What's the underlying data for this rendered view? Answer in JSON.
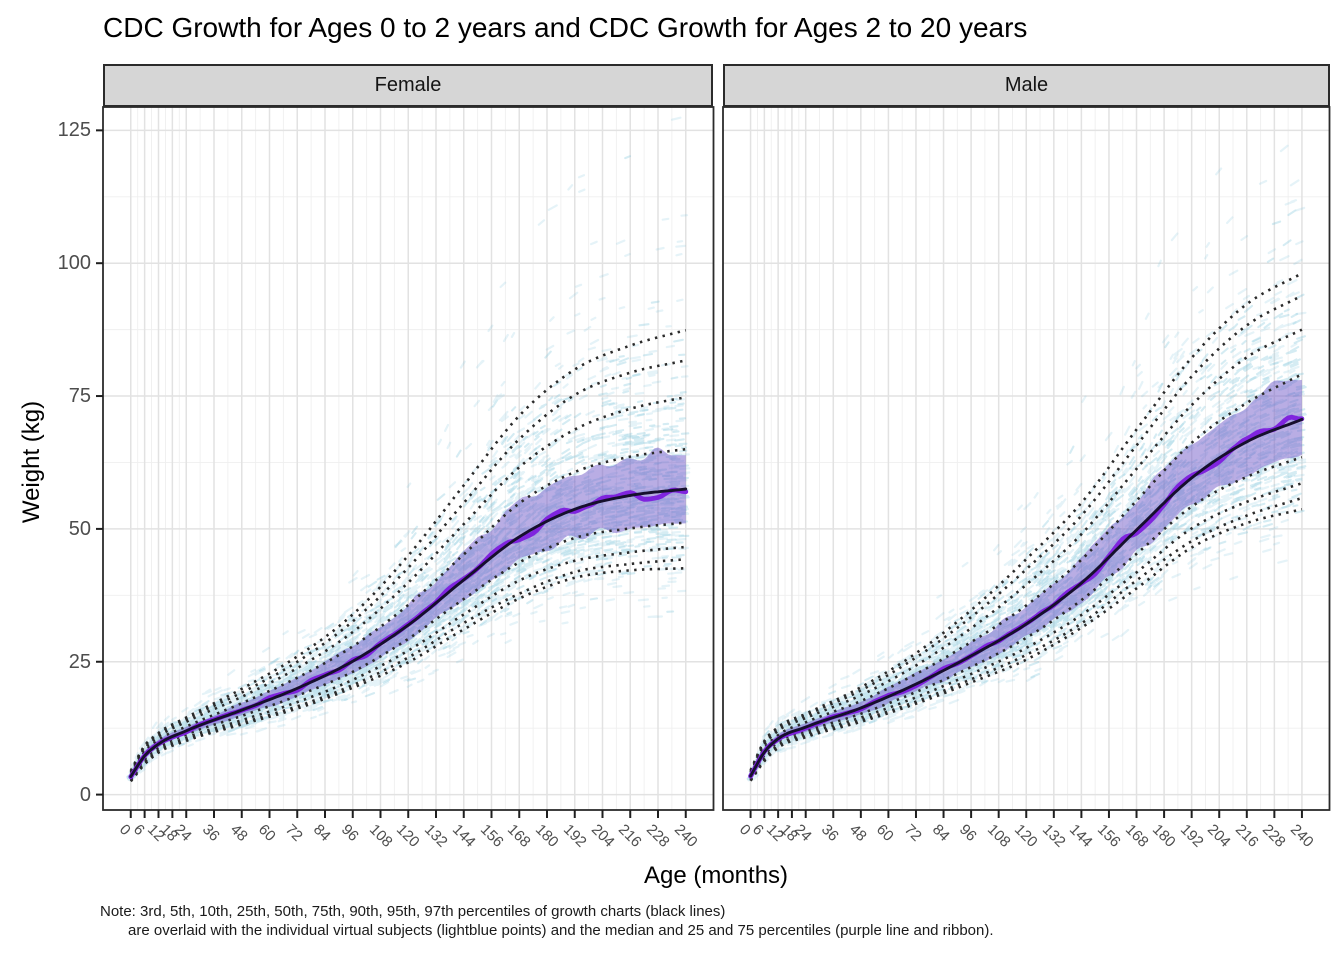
{
  "title": "CDC Growth for Ages 0 to 2 years and CDC Growth for Ages 2 to 20 years",
  "facets": [
    {
      "label": "Female"
    },
    {
      "label": "Male"
    }
  ],
  "y_axis": {
    "label": "Weight (kg)",
    "ticks": [
      0,
      25,
      50,
      75,
      100,
      125
    ]
  },
  "x_axis": {
    "label": "Age (months)",
    "ticks": [
      0,
      6,
      12,
      18,
      24,
      36,
      48,
      60,
      72,
      84,
      96,
      108,
      120,
      132,
      144,
      156,
      168,
      180,
      192,
      204,
      216,
      228,
      240
    ]
  },
  "note_line1": "Note: 3rd, 5th, 10th, 25th, 50th, 75th, 90th, 95th, 97th percentiles of growth charts (black lines)",
  "note_line2": "are overlaid with the individual virtual subjects (lightblue points) and the median and 25 and 75 percentiles (purple line and ribbon).",
  "colors": {
    "points": "#7fc4dc",
    "ribbon": "rgba(116,92,201,0.50)",
    "sim_median": "#7f24de",
    "cdc_median": "#16102d",
    "dotted_percentiles": "#2b2b2b",
    "strip_bg": "#d6d6d6",
    "panel_border": "#2b2b2b",
    "grid_major": "#e2e2e2",
    "grid_minor": "#efefef",
    "axis_text": "#4d4d4d"
  },
  "chart_data": {
    "type": "line",
    "title": "CDC Growth for Ages 0 to 2 years and CDC Growth for Ages 2 to 20 years",
    "xlabel": "Age (months)",
    "ylabel": "Weight (kg)",
    "xlim": [
      0,
      240
    ],
    "ylim": [
      0,
      130
    ],
    "grid": true,
    "facets": [
      "Female",
      "Male"
    ],
    "percentile_labels": [
      "P3",
      "P5",
      "P10",
      "P25",
      "P50",
      "P75",
      "P90",
      "P95",
      "P97"
    ],
    "ages": [
      0,
      6,
      12,
      24,
      48,
      72,
      96,
      120,
      144,
      168,
      192,
      216,
      240
    ],
    "series": [
      {
        "facet": "Female",
        "percentiles": {
          "P3": [
            2.5,
            5.7,
            7.9,
            10.1,
            13.2,
            16.2,
            20.1,
            24.9,
            31.1,
            36.9,
            40.8,
            42.2,
            42.6
          ],
          "P5": [
            2.6,
            5.9,
            8.1,
            10.3,
            13.5,
            16.6,
            20.6,
            25.8,
            32.3,
            37.8,
            41.9,
            43.4,
            44.3
          ],
          "P10": [
            2.8,
            6.2,
            8.4,
            10.7,
            14.0,
            17.4,
            21.6,
            27.1,
            33.9,
            40.3,
            44.0,
            45.6,
            46.6
          ],
          "P25": [
            3.1,
            6.7,
            8.9,
            11.3,
            14.8,
            18.6,
            23.1,
            29.3,
            36.8,
            43.7,
            48.3,
            50.1,
            51.2
          ],
          "P50": [
            3.4,
            7.3,
            9.5,
            12.0,
            15.9,
            20.0,
            25.1,
            31.9,
            40.4,
            48.5,
            53.7,
            56.3,
            57.5
          ],
          "P75": [
            3.8,
            8.0,
            10.3,
            12.8,
            17.2,
            22.0,
            27.9,
            35.7,
            45.2,
            54.8,
            60.7,
            63.6,
            65.0
          ],
          "P90": [
            4.1,
            8.6,
            10.9,
            13.7,
            18.4,
            23.8,
            30.6,
            39.9,
            50.9,
            61.6,
            68.7,
            72.6,
            74.8
          ],
          "P95": [
            4.3,
            9.0,
            11.3,
            14.2,
            19.2,
            25.0,
            32.6,
            42.7,
            54.9,
            66.9,
            75.2,
            79.4,
            81.7
          ],
          "P97": [
            4.5,
            9.2,
            11.6,
            14.5,
            19.9,
            26.0,
            33.9,
            45.0,
            58.2,
            71.3,
            80.0,
            84.5,
            87.4
          ]
        }
      },
      {
        "facet": "Male",
        "percentiles": {
          "P3": [
            2.6,
            6.3,
            8.8,
            10.8,
            13.7,
            17.1,
            21.1,
            25.4,
            31.4,
            38.8,
            46.5,
            51.1,
            53.7
          ],
          "P5": [
            2.7,
            6.5,
            9.0,
            11.0,
            14.0,
            17.5,
            21.7,
            26.3,
            32.2,
            40.3,
            47.7,
            52.5,
            55.8
          ],
          "P10": [
            2.8,
            6.8,
            9.3,
            11.4,
            14.5,
            18.3,
            22.7,
            27.6,
            33.8,
            41.8,
            50.1,
            55.1,
            58.6
          ],
          "P25": [
            3.2,
            7.4,
            9.9,
            11.9,
            15.2,
            19.3,
            24.0,
            29.5,
            36.6,
            45.3,
            54.2,
            59.8,
            63.5
          ],
          "P50": [
            3.5,
            8.0,
            10.5,
            12.7,
            16.3,
            20.8,
            26.1,
            32.1,
            39.8,
            49.8,
            59.6,
            66.4,
            70.6
          ],
          "P75": [
            3.9,
            8.7,
            11.2,
            13.6,
            17.6,
            22.7,
            28.7,
            35.6,
            44.2,
            55.3,
            66.2,
            73.7,
            79.1
          ],
          "P90": [
            4.2,
            9.4,
            12.0,
            14.4,
            18.7,
            24.3,
            31.3,
            39.5,
            49.0,
            61.3,
            73.3,
            82.3,
            87.5
          ],
          "P95": [
            4.4,
            9.8,
            12.4,
            14.9,
            19.6,
            25.8,
            33.4,
            42.4,
            52.5,
            65.7,
            78.7,
            88.3,
            93.9
          ],
          "P97": [
            4.6,
            10.1,
            12.7,
            15.2,
            20.2,
            26.6,
            34.7,
            44.3,
            54.9,
            68.7,
            82.2,
            92.3,
            98.1
          ]
        }
      }
    ],
    "overlays": {
      "dotted_black_lines": "CDC percentiles P3,P5,P10,P25,P75,P90,P95,P97",
      "solid_dark_line": "CDC 50th percentile",
      "purple_line": "median of virtual subjects",
      "purple_ribbon": "25th to 75th percentile of virtual subjects",
      "lightblue_points": "individual virtual subjects"
    }
  }
}
